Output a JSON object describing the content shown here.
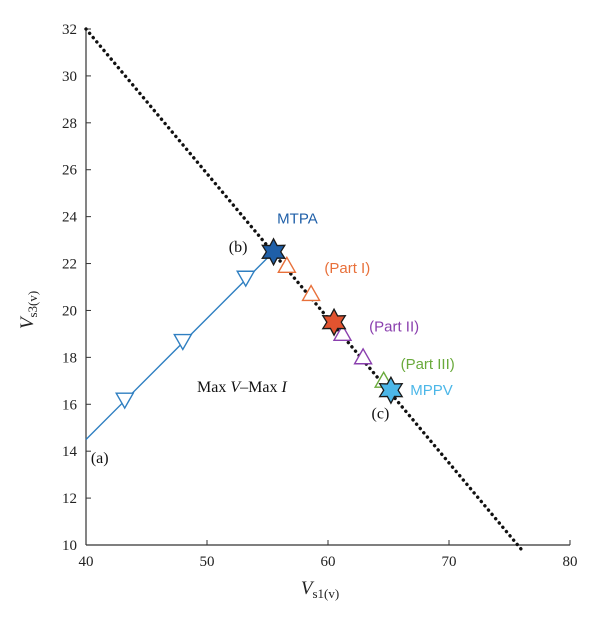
{
  "chart_data": {
    "type": "line",
    "title": "",
    "xlabel": {
      "main": "V",
      "sub": "s1(v)"
    },
    "ylabel": {
      "main": "V",
      "sub": "s3(v)"
    },
    "xlim": [
      40,
      80
    ],
    "ylim": [
      10,
      32
    ],
    "x_ticks": [
      40,
      50,
      60,
      70,
      80
    ],
    "y_ticks": [
      10,
      12,
      14,
      16,
      18,
      20,
      22,
      24,
      26,
      28,
      30,
      32
    ],
    "grid": false,
    "colors": {
      "blue": "#2f7fc1",
      "orange": "#e8703a",
      "purple": "#8a3fae",
      "green": "#6aaa3c",
      "dark_blue": "#1f5fa8",
      "orange_red": "#e2532f",
      "light_blue": "#4cb7e8",
      "black": "#111111"
    },
    "series": [
      {
        "kind": "limit-line",
        "style": "dotted",
        "color": "black",
        "x": [
          40,
          76
        ],
        "y": [
          32,
          9.8
        ]
      },
      {
        "kind": "trajectory",
        "style": "solid",
        "color": "blue",
        "marker": "triangle-down",
        "x": [
          40,
          55.5
        ],
        "y": [
          14.5,
          22.5
        ],
        "markers_x": [
          43.2,
          48,
          53.2
        ],
        "markers_y": [
          16.2,
          18.7,
          21.4
        ]
      },
      {
        "kind": "part",
        "color": "orange",
        "marker": "triangle-up",
        "x": [
          55.5,
          60.5
        ],
        "y": [
          22.5,
          19.5
        ],
        "markers_x": [
          56.6,
          58.6
        ],
        "markers_y": [
          21.9,
          20.7
        ]
      },
      {
        "kind": "part",
        "color": "purple",
        "marker": "triangle-up",
        "x": [
          60.5,
          64.2
        ],
        "y": [
          19.5,
          17.2
        ],
        "markers_x": [
          61.2,
          62.9
        ],
        "markers_y": [
          19.0,
          18.0
        ]
      },
      {
        "kind": "part",
        "color": "green",
        "marker": "triangle-up",
        "x": [
          64.2,
          65.2
        ],
        "y": [
          17.2,
          16.6
        ],
        "markers_x": [
          64.6
        ],
        "markers_y": [
          17.0
        ]
      }
    ],
    "special_points": [
      {
        "name": "mtpa-point",
        "x": 55.5,
        "y": 22.5,
        "color": "dark_blue",
        "shape": "star6"
      },
      {
        "name": "part1-end-point",
        "x": 60.5,
        "y": 19.5,
        "color": "orange_red",
        "shape": "star6"
      },
      {
        "name": "mppv-point",
        "x": 65.2,
        "y": 16.6,
        "color": "light_blue",
        "shape": "star6"
      }
    ],
    "annotations": [
      {
        "name": "label-mtpa",
        "text": "MTPA",
        "x": 55.8,
        "y": 23.7,
        "color": "dark_blue",
        "font": "sans"
      },
      {
        "name": "label-b",
        "text": "(b)",
        "x": 51.8,
        "y": 22.5,
        "color": "black",
        "font": "serif"
      },
      {
        "name": "label-part-i",
        "text": "(Part I)",
        "x": 59.7,
        "y": 21.6,
        "color": "orange",
        "font": "sans"
      },
      {
        "name": "label-part-ii",
        "text": "(Part II)",
        "x": 63.4,
        "y": 19.1,
        "color": "purple",
        "font": "sans"
      },
      {
        "name": "label-part-iii",
        "text": "(Part III)",
        "x": 66.0,
        "y": 17.5,
        "color": "green",
        "font": "sans"
      },
      {
        "name": "label-mppv",
        "text": "MPPV",
        "x": 66.8,
        "y": 16.4,
        "color": "light_blue",
        "font": "sans"
      },
      {
        "name": "label-c",
        "text": "(c)",
        "x": 63.6,
        "y": 15.4,
        "color": "black",
        "font": "serif"
      },
      {
        "name": "label-a",
        "text": "(a)",
        "x": 40.4,
        "y": 13.5,
        "color": "black",
        "font": "serif"
      }
    ],
    "region_label": {
      "pre": "Max ",
      "v": "V",
      "mid": "–Max ",
      "i": "I"
    }
  }
}
